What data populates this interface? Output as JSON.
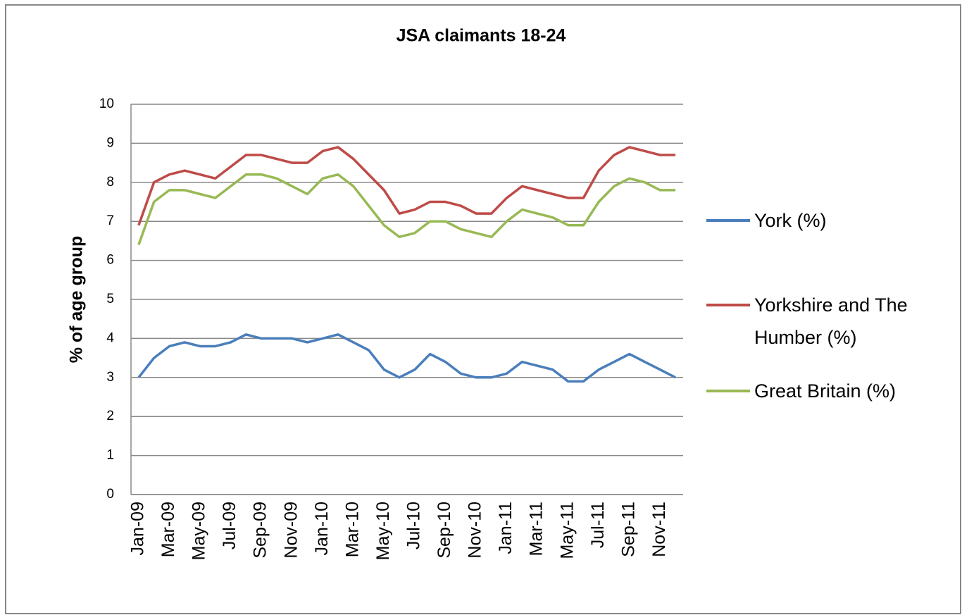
{
  "chart_data": {
    "type": "line",
    "title": "JSA claimants 18-24",
    "y_label": "% of age group",
    "categories": [
      "Jan-09",
      null,
      "Mar-09",
      null,
      "May-09",
      null,
      "Jul-09",
      null,
      "Sep-09",
      null,
      "Nov-09",
      null,
      "Jan-10",
      null,
      "Mar-10",
      null,
      "May-10",
      null,
      "Jul-10",
      null,
      "Sep-10",
      null,
      "Nov-10",
      null,
      "Jan-11",
      null,
      "Mar-11",
      null,
      "May-11",
      null,
      "Jul-11",
      null,
      "Sep-11",
      null,
      "Nov-11",
      null
    ],
    "series": [
      {
        "name": "York (%)",
        "color": "#4a7ebb",
        "values": [
          3.0,
          3.5,
          3.8,
          3.9,
          3.8,
          3.8,
          3.9,
          4.1,
          4.0,
          4.0,
          4.0,
          3.9,
          4.0,
          4.1,
          3.9,
          3.7,
          3.2,
          3.0,
          3.2,
          3.6,
          3.4,
          3.1,
          3.0,
          3.0,
          3.1,
          3.4,
          3.3,
          3.2,
          2.9,
          2.9,
          3.2,
          3.4,
          3.6,
          3.4,
          3.2,
          3.0
        ]
      },
      {
        "name": "Yorkshire and The Humber (%)",
        "color": "#be4b48",
        "values": [
          6.9,
          8.0,
          8.2,
          8.3,
          8.2,
          8.1,
          8.4,
          8.7,
          8.7,
          8.6,
          8.5,
          8.5,
          8.8,
          8.9,
          8.6,
          8.2,
          7.8,
          7.2,
          7.3,
          7.5,
          7.5,
          7.4,
          7.2,
          7.2,
          7.6,
          7.9,
          7.8,
          7.7,
          7.6,
          7.6,
          8.3,
          8.7,
          8.9,
          8.8,
          8.7,
          8.7
        ]
      },
      {
        "name": "Great Britain (%)",
        "color": "#98b954",
        "values": [
          6.4,
          7.5,
          7.8,
          7.8,
          7.7,
          7.6,
          7.9,
          8.2,
          8.2,
          8.1,
          7.9,
          7.7,
          8.1,
          8.2,
          7.9,
          7.4,
          6.9,
          6.6,
          6.7,
          7.0,
          7.0,
          6.8,
          6.7,
          6.6,
          7.0,
          7.3,
          7.2,
          7.1,
          6.9,
          6.9,
          7.5,
          7.9,
          8.1,
          8.0,
          7.8,
          7.8
        ]
      }
    ],
    "ylim": [
      0,
      10
    ],
    "yticks": [
      0,
      1,
      2,
      3,
      4,
      5,
      6,
      7,
      8,
      9,
      10
    ],
    "grid": true,
    "legend": "right"
  }
}
